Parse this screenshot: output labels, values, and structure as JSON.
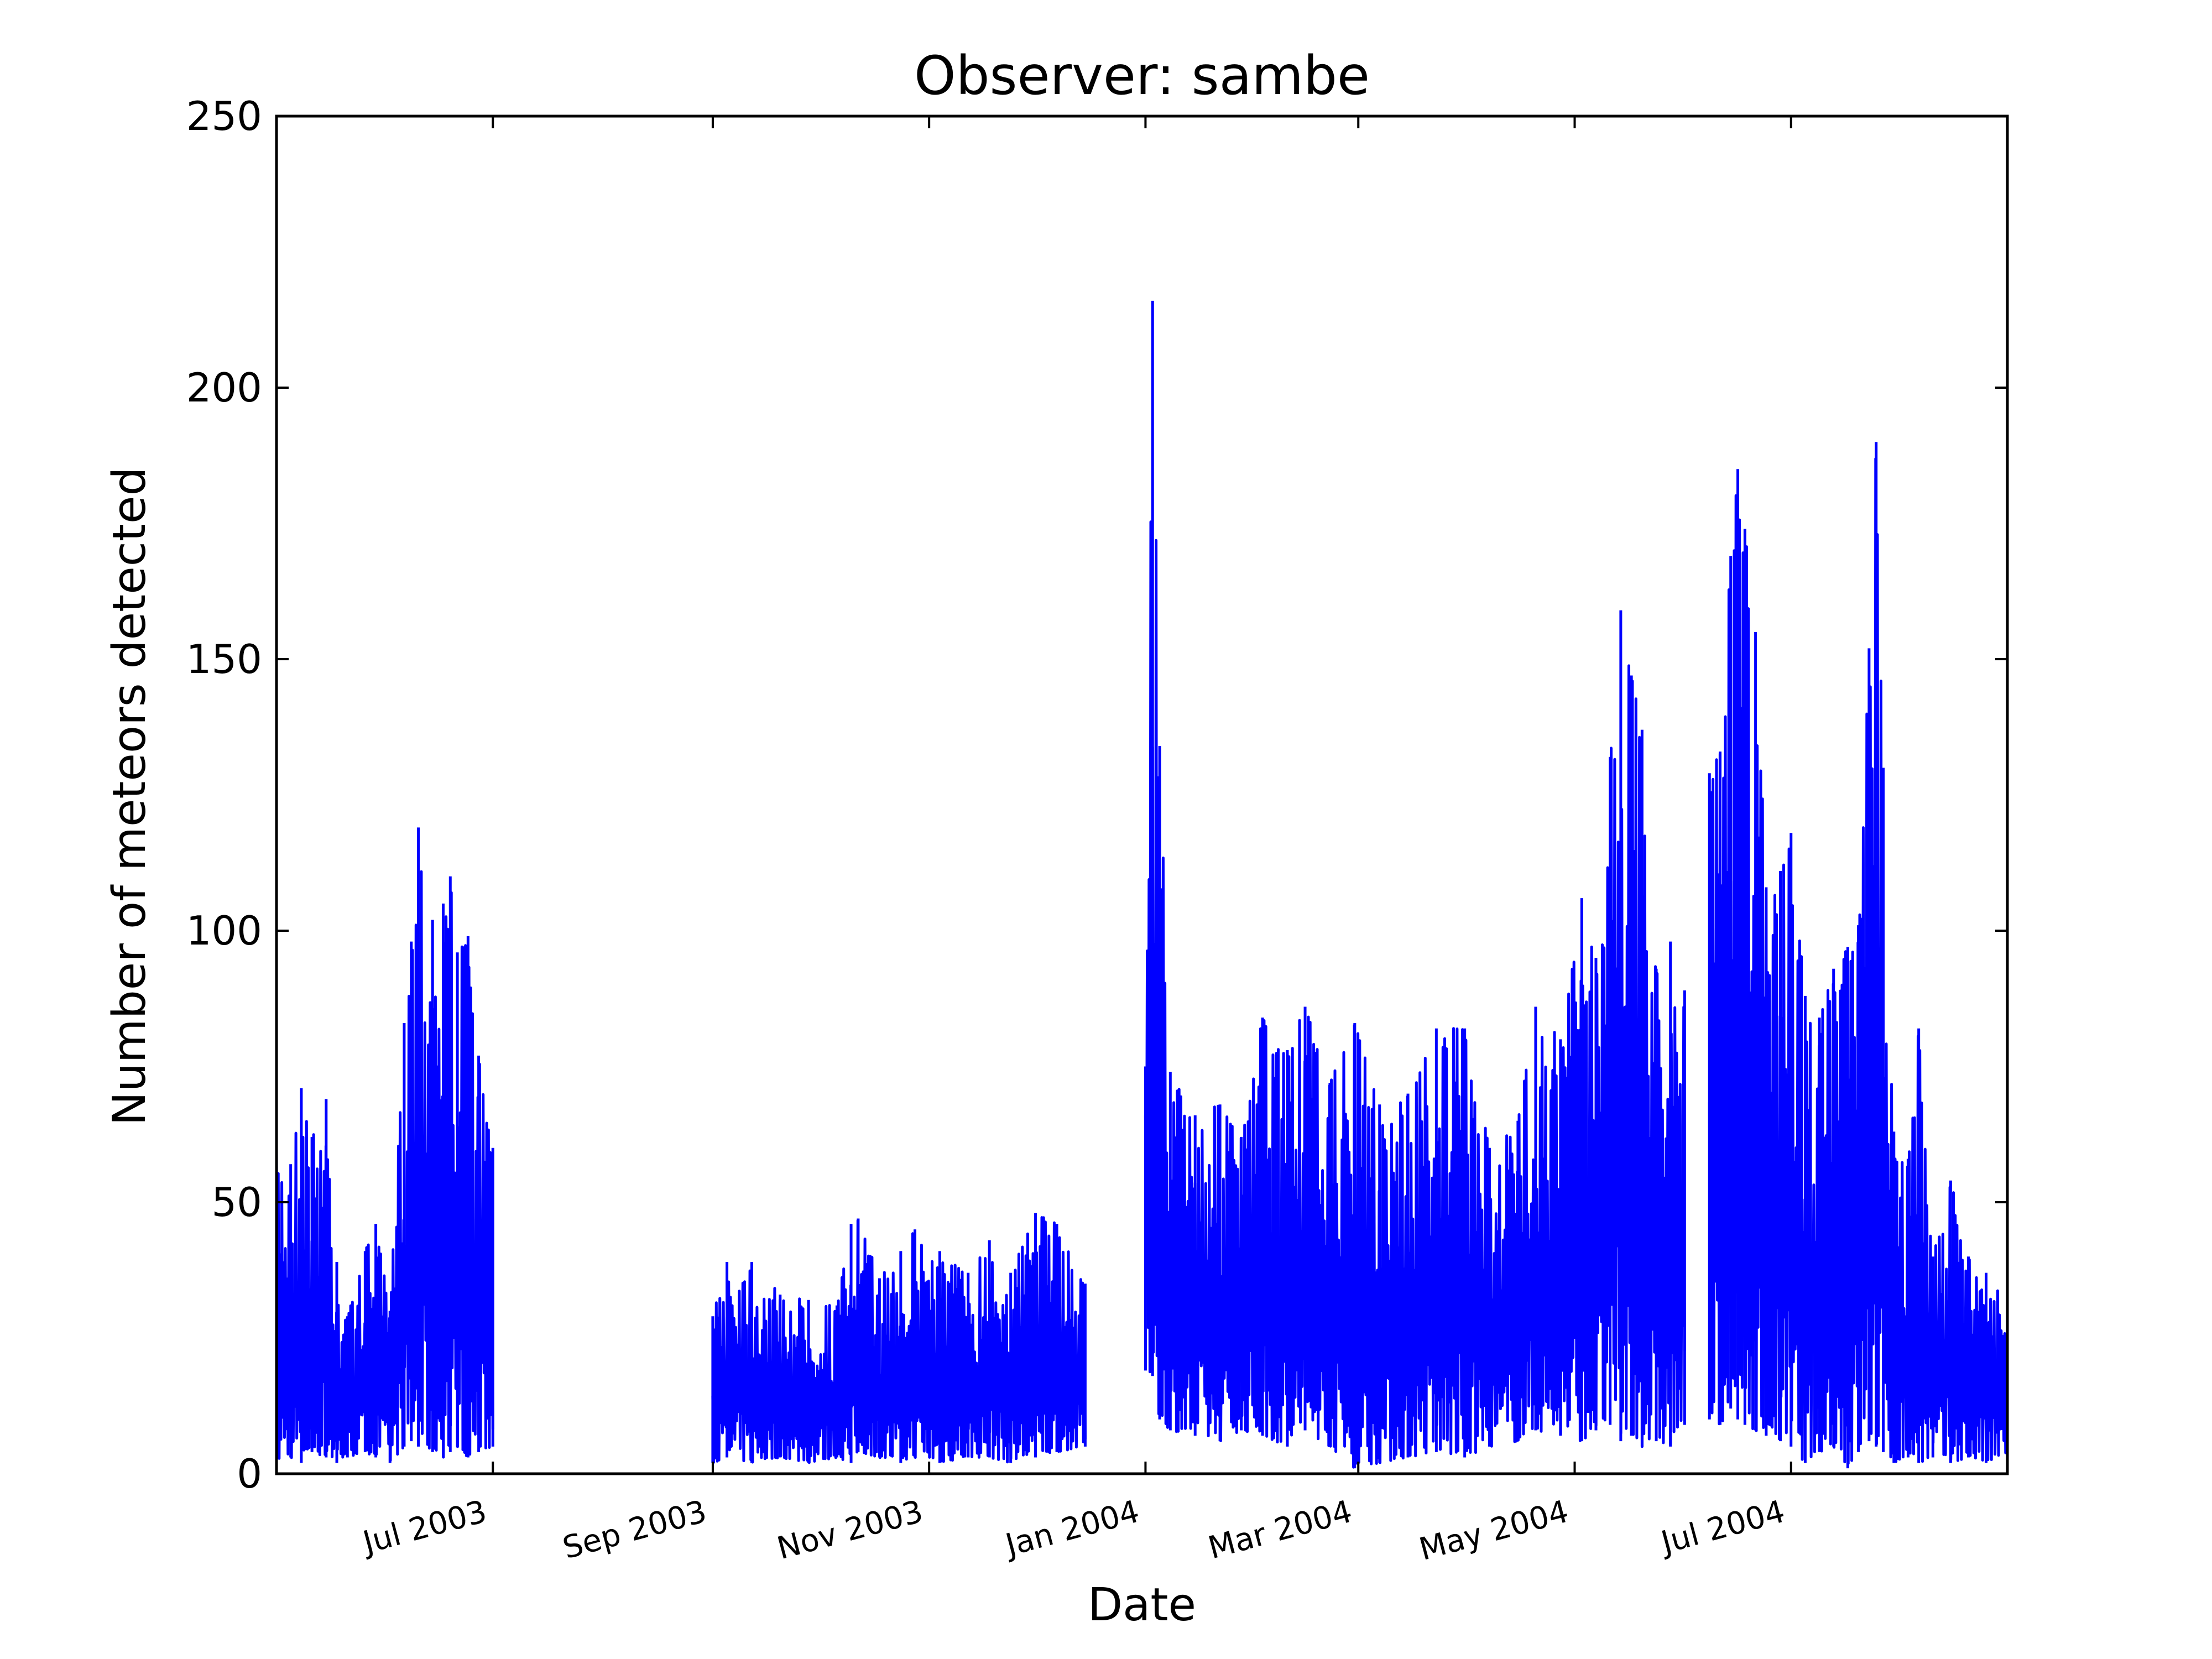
{
  "chart_data": {
    "type": "line",
    "title": "Observer: sambe",
    "xlabel": "Date",
    "ylabel": "Number of meteors detected",
    "xlim": [
      "2003-05-01",
      "2004-08-31"
    ],
    "ylim": [
      0,
      250
    ],
    "yticks": [
      0,
      50,
      100,
      150,
      200,
      250
    ],
    "xticks": [
      {
        "date": "2003-07-01",
        "label": "Jul 2003"
      },
      {
        "date": "2003-09-01",
        "label": "Sep 2003"
      },
      {
        "date": "2003-11-01",
        "label": "Nov 2003"
      },
      {
        "date": "2004-01-01",
        "label": "Jan 2004"
      },
      {
        "date": "2004-03-01",
        "label": "Mar 2004"
      },
      {
        "date": "2004-05-01",
        "label": "May 2004"
      },
      {
        "date": "2004-07-01",
        "label": "Jul 2004"
      }
    ],
    "grid": false,
    "legend": "none",
    "series": [
      {
        "color": "#0000ff",
        "segments": [
          {
            "start": "2003-05-01",
            "end": "2003-07-01",
            "envelope": [
              {
                "date": "2003-05-01",
                "min": 2,
                "max": 60
              },
              {
                "date": "2003-05-05",
                "min": 3,
                "max": 57
              },
              {
                "date": "2003-05-08",
                "min": 2,
                "max": 71
              },
              {
                "date": "2003-05-11",
                "min": 4,
                "max": 62
              },
              {
                "date": "2003-05-15",
                "min": 3,
                "max": 69
              },
              {
                "date": "2003-05-18",
                "min": 2,
                "max": 39
              },
              {
                "date": "2003-05-21",
                "min": 3,
                "max": 29
              },
              {
                "date": "2003-05-26",
                "min": 4,
                "max": 41
              },
              {
                "date": "2003-05-29",
                "min": 3,
                "max": 46
              },
              {
                "date": "2003-06-02",
                "min": 2,
                "max": 30
              },
              {
                "date": "2003-06-06",
                "min": 5,
                "max": 83
              },
              {
                "date": "2003-06-08",
                "min": 6,
                "max": 98
              },
              {
                "date": "2003-06-10",
                "min": 5,
                "max": 119
              },
              {
                "date": "2003-06-14",
                "min": 4,
                "max": 102
              },
              {
                "date": "2003-06-17",
                "min": 3,
                "max": 105
              },
              {
                "date": "2003-06-19",
                "min": 4,
                "max": 110
              },
              {
                "date": "2003-06-21",
                "min": 5,
                "max": 96
              },
              {
                "date": "2003-06-24",
                "min": 3,
                "max": 99
              },
              {
                "date": "2003-06-27",
                "min": 4,
                "max": 77
              },
              {
                "date": "2003-07-01",
                "min": 5,
                "max": 60
              }
            ]
          },
          {
            "start": "2003-09-01",
            "end": "2003-12-15",
            "envelope": [
              {
                "date": "2003-09-01",
                "min": 2,
                "max": 29
              },
              {
                "date": "2003-09-05",
                "min": 3,
                "max": 39
              },
              {
                "date": "2003-09-12",
                "min": 2,
                "max": 39
              },
              {
                "date": "2003-09-20",
                "min": 3,
                "max": 33
              },
              {
                "date": "2003-09-28",
                "min": 2,
                "max": 32
              },
              {
                "date": "2003-10-06",
                "min": 3,
                "max": 31
              },
              {
                "date": "2003-10-10",
                "min": 2,
                "max": 46
              },
              {
                "date": "2003-10-12",
                "min": 4,
                "max": 47
              },
              {
                "date": "2003-10-18",
                "min": 3,
                "max": 36
              },
              {
                "date": "2003-10-24",
                "min": 2,
                "max": 41
              },
              {
                "date": "2003-10-28",
                "min": 3,
                "max": 45
              },
              {
                "date": "2003-11-04",
                "min": 2,
                "max": 41
              },
              {
                "date": "2003-11-12",
                "min": 3,
                "max": 37
              },
              {
                "date": "2003-11-18",
                "min": 3,
                "max": 43
              },
              {
                "date": "2003-11-24",
                "min": 2,
                "max": 37
              },
              {
                "date": "2003-12-01",
                "min": 3,
                "max": 48
              },
              {
                "date": "2003-12-07",
                "min": 4,
                "max": 46
              },
              {
                "date": "2003-12-15",
                "min": 5,
                "max": 35
              }
            ]
          },
          {
            "start": "2004-01-01",
            "end": "2004-06-01",
            "envelope": [
              {
                "date": "2004-01-01",
                "min": 19,
                "max": 75
              },
              {
                "date": "2004-01-03",
                "min": 18,
                "max": 216
              },
              {
                "date": "2004-01-05",
                "min": 10,
                "max": 134
              },
              {
                "date": "2004-01-08",
                "min": 8,
                "max": 74
              },
              {
                "date": "2004-01-15",
                "min": 7,
                "max": 66
              },
              {
                "date": "2004-01-22",
                "min": 6,
                "max": 68
              },
              {
                "date": "2004-01-28",
                "min": 8,
                "max": 62
              },
              {
                "date": "2004-02-03",
                "min": 7,
                "max": 84
              },
              {
                "date": "2004-02-10",
                "min": 5,
                "max": 78
              },
              {
                "date": "2004-02-15",
                "min": 8,
                "max": 86
              },
              {
                "date": "2004-02-22",
                "min": 5,
                "max": 72
              },
              {
                "date": "2004-02-29",
                "min": 1,
                "max": 83
              },
              {
                "date": "2004-03-07",
                "min": 2,
                "max": 68
              },
              {
                "date": "2004-03-15",
                "min": 3,
                "max": 70
              },
              {
                "date": "2004-03-23",
                "min": 4,
                "max": 82
              },
              {
                "date": "2004-03-31",
                "min": 3,
                "max": 82
              },
              {
                "date": "2004-04-07",
                "min": 5,
                "max": 60
              },
              {
                "date": "2004-04-15",
                "min": 6,
                "max": 65
              },
              {
                "date": "2004-04-20",
                "min": 8,
                "max": 86
              },
              {
                "date": "2004-04-27",
                "min": 7,
                "max": 80
              },
              {
                "date": "2004-05-03",
                "min": 6,
                "max": 106
              },
              {
                "date": "2004-05-07",
                "min": 8,
                "max": 95
              },
              {
                "date": "2004-05-11",
                "min": 9,
                "max": 132
              },
              {
                "date": "2004-05-14",
                "min": 6,
                "max": 159
              },
              {
                "date": "2004-05-17",
                "min": 7,
                "max": 147
              },
              {
                "date": "2004-05-20",
                "min": 5,
                "max": 137
              },
              {
                "date": "2004-05-24",
                "min": 6,
                "max": 93
              },
              {
                "date": "2004-05-28",
                "min": 5,
                "max": 98
              },
              {
                "date": "2004-06-01",
                "min": 9,
                "max": 89
              }
            ]
          },
          {
            "start": "2004-06-08",
            "end": "2004-08-31",
            "envelope": [
              {
                "date": "2004-06-08",
                "min": 10,
                "max": 129
              },
              {
                "date": "2004-06-11",
                "min": 9,
                "max": 133
              },
              {
                "date": "2004-06-14",
                "min": 12,
                "max": 169
              },
              {
                "date": "2004-06-16",
                "min": 10,
                "max": 185
              },
              {
                "date": "2004-06-18",
                "min": 9,
                "max": 174
              },
              {
                "date": "2004-06-21",
                "min": 8,
                "max": 155
              },
              {
                "date": "2004-06-24",
                "min": 7,
                "max": 108
              },
              {
                "date": "2004-06-28",
                "min": 6,
                "max": 111
              },
              {
                "date": "2004-07-01",
                "min": 5,
                "max": 118
              },
              {
                "date": "2004-07-05",
                "min": 2,
                "max": 88
              },
              {
                "date": "2004-07-09",
                "min": 4,
                "max": 84
              },
              {
                "date": "2004-07-13",
                "min": 5,
                "max": 93
              },
              {
                "date": "2004-07-17",
                "min": 1,
                "max": 97
              },
              {
                "date": "2004-07-20",
                "min": 4,
                "max": 101
              },
              {
                "date": "2004-07-23",
                "min": 6,
                "max": 152
              },
              {
                "date": "2004-07-25",
                "min": 5,
                "max": 190
              },
              {
                "date": "2004-07-27",
                "min": 4,
                "max": 130
              },
              {
                "date": "2004-07-30",
                "min": 2,
                "max": 63
              },
              {
                "date": "2004-08-03",
                "min": 3,
                "max": 58
              },
              {
                "date": "2004-08-06",
                "min": 2,
                "max": 82
              },
              {
                "date": "2004-08-10",
                "min": 3,
                "max": 40
              },
              {
                "date": "2004-08-15",
                "min": 2,
                "max": 54
              },
              {
                "date": "2004-08-20",
                "min": 3,
                "max": 40
              },
              {
                "date": "2004-08-25",
                "min": 2,
                "max": 37
              },
              {
                "date": "2004-08-31",
                "min": 3,
                "max": 33
              }
            ]
          }
        ]
      }
    ]
  }
}
